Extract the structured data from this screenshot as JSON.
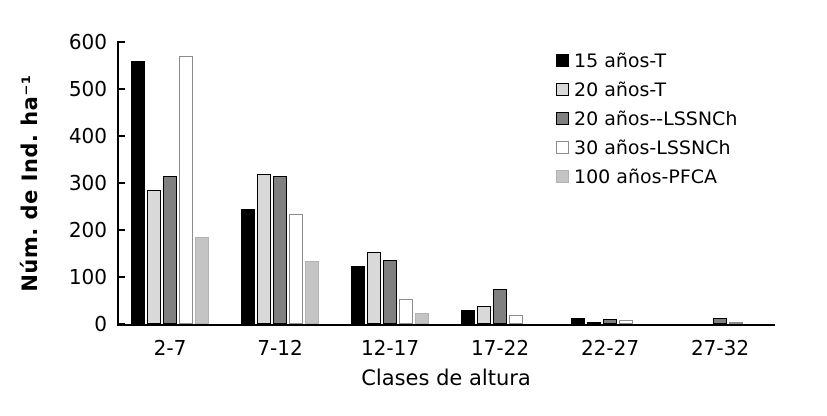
{
  "chart_data": {
    "type": "bar",
    "bar_layout": "grouped",
    "title": "",
    "xlabel": "Clases de altura",
    "ylabel": "Núm. de Ind. ha⁻¹",
    "categories": [
      "2-7",
      "7-12",
      "12-17",
      "17-22",
      "22-27",
      "27-32"
    ],
    "series": [
      {
        "name": "15 años-T",
        "fill": "#000000",
        "border": "#000000",
        "values": [
          560,
          245,
          123,
          30,
          13,
          0
        ]
      },
      {
        "name": "20 años-T",
        "fill": "#d9d9d9",
        "border": "#000000",
        "values": [
          285,
          320,
          153,
          38,
          4,
          0
        ]
      },
      {
        "name": "20 años--LSSNCh",
        "fill": "#808080",
        "border": "#000000",
        "values": [
          315,
          315,
          136,
          74,
          11,
          13
        ]
      },
      {
        "name": "30 años-LSSNCh",
        "fill": "#ffffff",
        "border": "#8c8c8c",
        "values": [
          570,
          233,
          53,
          20,
          8,
          3
        ]
      },
      {
        "name": "100 años-PFCA",
        "fill": "#c4c4c4",
        "border": "#b2b2b2",
        "values": [
          185,
          134,
          24,
          0,
          0,
          0
        ]
      }
    ],
    "ylim": [
      0,
      600
    ],
    "yticks": [
      0,
      100,
      200,
      300,
      400,
      500,
      600
    ],
    "grid": false,
    "legend_position": "top-right",
    "background_color": "#ffffff",
    "axis_color": "#000000"
  }
}
